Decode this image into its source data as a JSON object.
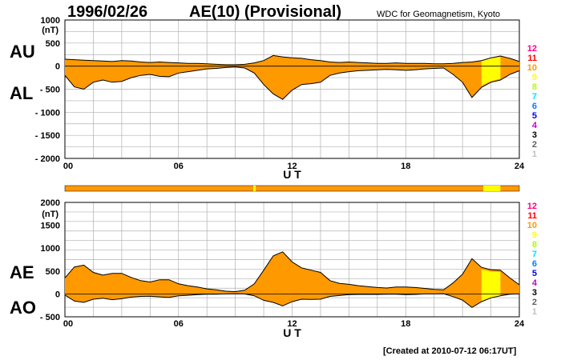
{
  "date": "1996/02/26",
  "title": "AE(10) (Provisional)",
  "source": "WDC for Geomagnetism, Kyoto",
  "created": "[Created at 2010-07-12 06:17UT]",
  "labels": {
    "au": "AU",
    "al": "AL",
    "ae": "AE",
    "ao": "AO"
  },
  "unit": "(nT)",
  "xlabel": "U T",
  "colors": {
    "fill_main": "#ff9900",
    "fill_yellow": "#ffff00",
    "grid": "#b0b0b0",
    "line": "#000000"
  },
  "station_legend": [
    {
      "label": "12",
      "color": "#ff0080"
    },
    {
      "label": "11",
      "color": "#ff0000"
    },
    {
      "label": "10",
      "color": "#ff9900"
    },
    {
      "label": "9",
      "color": "#ffff00"
    },
    {
      "label": "8",
      "color": "#aaff00"
    },
    {
      "label": "7",
      "color": "#00e0ff"
    },
    {
      "label": "6",
      "color": "#0080ff"
    },
    {
      "label": "5",
      "color": "#0000ff"
    },
    {
      "label": "4",
      "color": "#cc00cc"
    },
    {
      "label": "3",
      "color": "#000000"
    },
    {
      "label": "2",
      "color": "#606060"
    },
    {
      "label": "1",
      "color": "#c0c0c0"
    }
  ],
  "chart_data": [
    {
      "type": "area",
      "panel": "AU/AL",
      "xlabel": "U T",
      "ylabel": "(nT)",
      "xlim": [
        0,
        24
      ],
      "ylim": [
        -2000,
        1000
      ],
      "x_ticks": [
        "00",
        "06",
        "12",
        "18",
        "24"
      ],
      "y_ticks": [
        "1000",
        "500",
        "0",
        "- 500",
        "- 1000",
        "- 1500",
        "- 2000"
      ],
      "grid": true,
      "x": [
        0,
        0.5,
        1,
        1.5,
        2,
        2.5,
        3,
        3.5,
        4,
        4.5,
        5,
        5.5,
        6,
        6.5,
        7,
        7.5,
        8,
        8.5,
        9,
        9.5,
        10,
        10.5,
        11,
        11.5,
        12,
        12.5,
        13,
        13.5,
        14,
        14.5,
        15,
        15.5,
        16,
        16.5,
        17,
        17.5,
        18,
        18.5,
        19,
        19.5,
        20,
        20.5,
        21,
        21.5,
        22,
        22.5,
        23,
        23.5,
        24
      ],
      "series": [
        {
          "name": "AU",
          "values": [
            150,
            140,
            130,
            120,
            110,
            100,
            120,
            110,
            90,
            80,
            90,
            80,
            70,
            60,
            60,
            50,
            40,
            30,
            30,
            40,
            70,
            120,
            230,
            200,
            180,
            170,
            140,
            120,
            90,
            80,
            90,
            80,
            70,
            60,
            60,
            70,
            60,
            60,
            60,
            50,
            50,
            60,
            80,
            90,
            120,
            180,
            220,
            170,
            100
          ]
        },
        {
          "name": "AL",
          "values": [
            -200,
            -450,
            -500,
            -350,
            -300,
            -350,
            -330,
            -250,
            -200,
            -180,
            -220,
            -230,
            -150,
            -120,
            -90,
            -60,
            -50,
            -30,
            -20,
            -40,
            -150,
            -400,
            -600,
            -720,
            -520,
            -400,
            -380,
            -350,
            -200,
            -150,
            -120,
            -100,
            -90,
            -80,
            -70,
            -80,
            -90,
            -80,
            -60,
            -50,
            -40,
            -180,
            -350,
            -680,
            -460,
            -350,
            -300,
            -180,
            -100
          ]
        }
      ]
    },
    {
      "type": "area",
      "panel": "AE/AO",
      "xlabel": "U T",
      "ylabel": "(nT)",
      "xlim": [
        0,
        24
      ],
      "ylim": [
        -500,
        2000
      ],
      "x_ticks": [
        "00",
        "06",
        "12",
        "18",
        "24"
      ],
      "y_ticks": [
        "2000",
        "1500",
        "1000",
        "500",
        "0",
        "- 500"
      ],
      "grid": true,
      "x": [
        0,
        0.5,
        1,
        1.5,
        2,
        2.5,
        3,
        3.5,
        4,
        4.5,
        5,
        5.5,
        6,
        6.5,
        7,
        7.5,
        8,
        8.5,
        9,
        9.5,
        10,
        10.5,
        11,
        11.5,
        12,
        12.5,
        13,
        13.5,
        14,
        14.5,
        15,
        15.5,
        16,
        16.5,
        17,
        17.5,
        18,
        18.5,
        19,
        19.5,
        20,
        20.5,
        21,
        21.5,
        22,
        22.5,
        23,
        23.5,
        24
      ],
      "series": [
        {
          "name": "AE",
          "values": [
            350,
            590,
            630,
            470,
            410,
            450,
            450,
            360,
            290,
            260,
            310,
            310,
            220,
            180,
            150,
            110,
            90,
            60,
            50,
            80,
            220,
            520,
            830,
            920,
            700,
            570,
            520,
            470,
            290,
            230,
            210,
            180,
            160,
            140,
            130,
            150,
            150,
            140,
            120,
            100,
            90,
            240,
            430,
            770,
            580,
            530,
            520,
            350,
            200
          ]
        },
        {
          "name": "AO",
          "values": [
            -25,
            -155,
            -185,
            -115,
            -95,
            -125,
            -105,
            -70,
            -55,
            -50,
            -65,
            -75,
            -40,
            -30,
            -15,
            -5,
            -5,
            0,
            5,
            0,
            -40,
            -140,
            -185,
            -260,
            -170,
            -115,
            -120,
            -115,
            -55,
            -35,
            -15,
            -10,
            -10,
            -10,
            -5,
            -5,
            -15,
            -10,
            0,
            0,
            5,
            -60,
            -135,
            -295,
            -170,
            -85,
            -40,
            -5,
            0
          ]
        }
      ]
    }
  ]
}
